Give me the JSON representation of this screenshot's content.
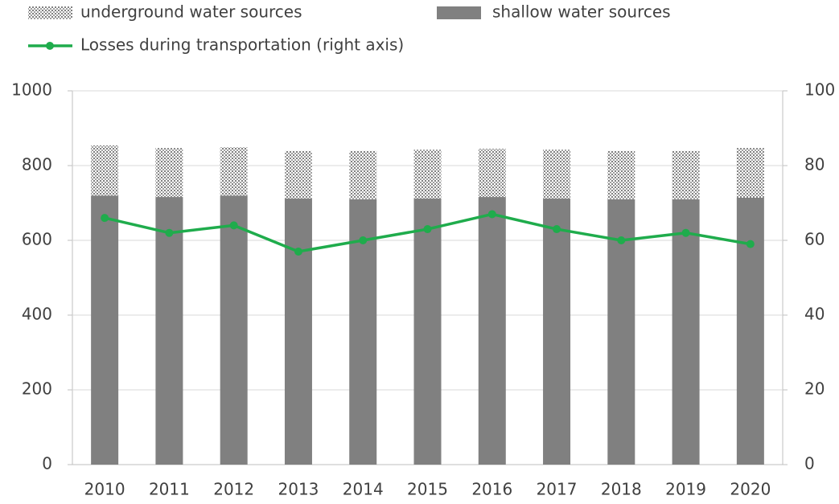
{
  "chart_data": {
    "type": "bar_line",
    "categories": [
      "2010",
      "2011",
      "2012",
      "2013",
      "2014",
      "2015",
      "2016",
      "2017",
      "2018",
      "2019",
      "2020"
    ],
    "series": [
      {
        "name": "underground water sources",
        "type": "bar",
        "color": "#808080",
        "pattern": "dotted",
        "values": [
          134,
          131,
          129,
          127,
          129,
          131,
          129,
          131,
          129,
          129,
          133
        ]
      },
      {
        "name": "shallow water sources",
        "type": "bar",
        "color": "#808080",
        "values": [
          720,
          716,
          720,
          712,
          710,
          712,
          716,
          712,
          710,
          710,
          714
        ]
      },
      {
        "name": "Losses during transportation (right axis)",
        "type": "line",
        "axis": "y2",
        "color": "#1fac4c",
        "values": [
          66,
          62,
          64,
          57,
          60,
          63,
          67,
          63,
          60,
          62,
          59
        ]
      }
    ],
    "stacked": true,
    "ylim": [
      0,
      1000
    ],
    "yticks": [
      0,
      200,
      400,
      600,
      800,
      1000
    ],
    "y2lim": [
      0,
      100
    ],
    "y2ticks": [
      0,
      20,
      40,
      60,
      80,
      100
    ],
    "grid": true,
    "legend": "top"
  }
}
